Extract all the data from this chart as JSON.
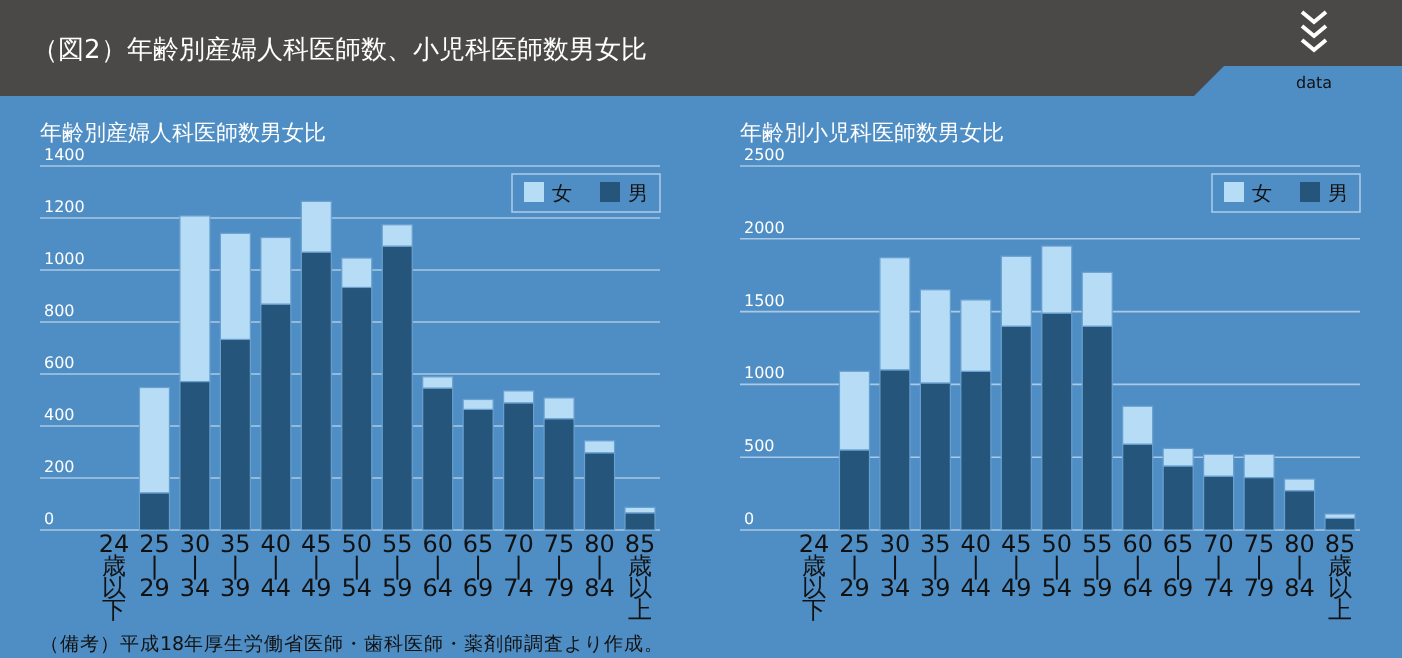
{
  "chart_data": [
    {
      "type": "bar",
      "stacked": true,
      "title": "年齢別産婦人科医師数男女比",
      "categories": [
        "24歳以下",
        "25|29",
        "30|34",
        "35|39",
        "40|44",
        "45|49",
        "50|54",
        "55|59",
        "60|64",
        "65|69",
        "70|74",
        "75|79",
        "80|84",
        "85歳以上"
      ],
      "series": [
        {
          "name": "男",
          "color": "#25557a",
          "values": [
            null,
            143,
            571,
            733,
            869,
            1069,
            933,
            1092,
            546,
            464,
            489,
            428,
            297,
            66
          ]
        },
        {
          "name": "女",
          "color": "#b7dcf5",
          "values": [
            null,
            405,
            637,
            408,
            256,
            195,
            113,
            82,
            43,
            38,
            46,
            80,
            46,
            21
          ]
        }
      ],
      "ylim": [
        0,
        1400
      ],
      "yticks": [
        0,
        200,
        400,
        600,
        800,
        1000,
        1200,
        1400
      ],
      "grid": "y",
      "legend": "top right",
      "annotations": [
        "（図2）年齢別産婦人科医師数、小児科医師数男女比",
        "data",
        "（備考）平成18年厚生労働省医師・歯科医師・薬剤師調査より作成。"
      ]
    },
    {
      "type": "bar",
      "stacked": true,
      "title": "年齢別小児科医師数男女比",
      "categories": [
        "24歳以下",
        "25|29",
        "30|34",
        "35|39",
        "40|44",
        "45|49",
        "50|54",
        "55|59",
        "60|64",
        "65|69",
        "70|74",
        "75|79",
        "80|84",
        "85歳以上"
      ],
      "series": [
        {
          "name": "男",
          "color": "#25557a",
          "values": [
            null,
            550,
            1100,
            1010,
            1090,
            1400,
            1490,
            1400,
            590,
            440,
            370,
            360,
            270,
            80
          ]
        },
        {
          "name": "女",
          "color": "#b7dcf5",
          "values": [
            null,
            540,
            770,
            640,
            490,
            480,
            460,
            370,
            260,
            120,
            150,
            160,
            80,
            30
          ]
        }
      ],
      "ylim": [
        0,
        2500
      ],
      "yticks": [
        0,
        500,
        1000,
        1500,
        2000,
        2500
      ],
      "grid": "y",
      "legend": "top right"
    }
  ]
}
